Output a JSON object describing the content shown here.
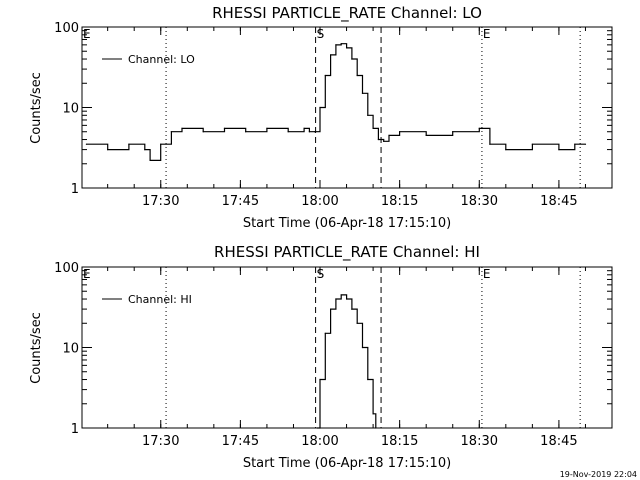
{
  "chart_data": [
    {
      "type": "line",
      "title": "RHESSI PARTICLE_RATE Channel: LO",
      "xlabel": "Start Time (06-Apr-18 17:15:10)",
      "ylabel": "Counts/sec",
      "yscale": "log",
      "ylim": [
        1,
        100
      ],
      "xlim": [
        "17:15:10",
        "18:55:00"
      ],
      "xticks": [
        "17:30",
        "17:45",
        "18:00",
        "18:15",
        "18:30",
        "18:45"
      ],
      "yticks": [
        "1",
        "10",
        "100"
      ],
      "legend": "top-left",
      "series": [
        {
          "name": "Channel: LO",
          "x": [
            "17:16",
            "17:20",
            "17:24",
            "17:27",
            "17:28",
            "17:30",
            "17:32",
            "17:34",
            "17:38",
            "17:42",
            "17:46",
            "17:50",
            "17:54",
            "17:57",
            "17:58",
            "17:59",
            "18:00",
            "18:01",
            "18:02",
            "18:03",
            "18:04",
            "18:05",
            "18:06",
            "18:07",
            "18:08",
            "18:09",
            "18:10",
            "18:11",
            "18:12",
            "18:13",
            "18:15",
            "18:20",
            "18:25",
            "18:30",
            "18:32",
            "18:35",
            "18:40",
            "18:45",
            "18:48",
            "18:50"
          ],
          "y": [
            3.5,
            3.0,
            3.5,
            3.0,
            2.2,
            3.5,
            5.0,
            5.5,
            5.0,
            5.5,
            5.0,
            5.5,
            5.0,
            5.5,
            5.0,
            5.0,
            10,
            25,
            45,
            60,
            62,
            55,
            40,
            25,
            15,
            8,
            5.5,
            4.0,
            3.8,
            4.5,
            5.0,
            4.5,
            5.0,
            5.5,
            3.5,
            3.0,
            3.5,
            3.0,
            3.5,
            3.5
          ]
        }
      ],
      "annotations": [
        {
          "text": "E",
          "time": "17:15:10"
        },
        {
          "text": "S",
          "time": "17:59:10"
        },
        {
          "text": "E",
          "time": "18:30:30"
        }
      ],
      "vertical_lines": [
        {
          "time": "17:31:00",
          "style": "dotted"
        },
        {
          "time": "17:59:10",
          "style": "dashed"
        },
        {
          "time": "18:11:30",
          "style": "dashed"
        },
        {
          "time": "18:30:30",
          "style": "dotted"
        },
        {
          "time": "18:49:00",
          "style": "dotted"
        }
      ]
    },
    {
      "type": "line",
      "title": "RHESSI PARTICLE_RATE Channel: HI",
      "xlabel": "Start Time (06-Apr-18 17:15:10)",
      "ylabel": "Counts/sec",
      "yscale": "log",
      "ylim": [
        1,
        100
      ],
      "xlim": [
        "17:15:10",
        "18:55:00"
      ],
      "xticks": [
        "17:30",
        "17:45",
        "18:00",
        "18:15",
        "18:30",
        "18:45"
      ],
      "yticks": [
        "1",
        "10",
        "100"
      ],
      "legend": "top-left",
      "series": [
        {
          "name": "Channel: HI",
          "x": [
            "17:59:30",
            "18:00",
            "18:01",
            "18:02",
            "18:03",
            "18:04",
            "18:05",
            "18:06",
            "18:07",
            "18:08",
            "18:09",
            "18:10",
            "18:10:30"
          ],
          "y": [
            1.0,
            4.0,
            15,
            30,
            40,
            45,
            40,
            30,
            20,
            10,
            4.0,
            1.5,
            1.0
          ]
        }
      ],
      "annotations": [
        {
          "text": "E",
          "time": "17:15:10"
        },
        {
          "text": "S",
          "time": "17:59:10"
        },
        {
          "text": "E",
          "time": "18:30:30"
        }
      ],
      "vertical_lines": [
        {
          "time": "17:31:00",
          "style": "dotted"
        },
        {
          "time": "17:59:10",
          "style": "dashed"
        },
        {
          "time": "18:11:30",
          "style": "dashed"
        },
        {
          "time": "18:30:30",
          "style": "dotted"
        },
        {
          "time": "18:49:00",
          "style": "dotted"
        }
      ]
    }
  ],
  "footer": {
    "timestamp": "19-Nov-2019 22:04"
  }
}
